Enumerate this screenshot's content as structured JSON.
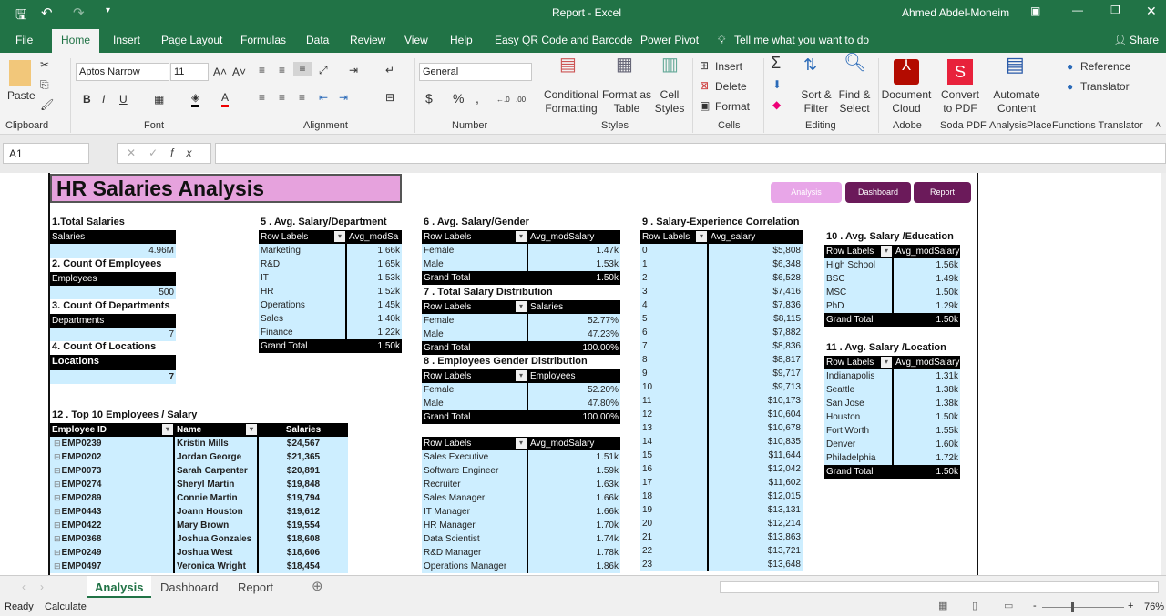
{
  "window": {
    "title": "Report - Excel",
    "user": "Ahmed Abdel-Moneim"
  },
  "ribbon_tabs": [
    "File",
    "Home",
    "Insert",
    "Page Layout",
    "Formulas",
    "Data",
    "Review",
    "View",
    "Help",
    "Easy QR Code and Barcode",
    "Power Pivot"
  ],
  "tell_me": "Tell me what you want to do",
  "share": "Share",
  "ribbon": {
    "paste": "Paste",
    "font_name": "Aptos Narrow",
    "font_size": "11",
    "number_format": "General",
    "conditional": "Conditional Formatting",
    "format_table": "Format as Table",
    "cell_styles": "Cell Styles",
    "insert": "Insert",
    "delete": "Delete",
    "format": "Format",
    "sort": "Sort & Filter",
    "find": "Find & Select",
    "doc_cloud": "Document Cloud",
    "convert_pdf": "Convert to PDF",
    "automate": "Automate Content",
    "reference": "Reference",
    "translator": "Translator",
    "groups": [
      "Clipboard",
      "Font",
      "Alignment",
      "Number",
      "Styles",
      "Cells",
      "Editing",
      "Adobe",
      "Soda PDF",
      "AnalysisPlace",
      "Functions Translator"
    ]
  },
  "formula_bar": {
    "name_box": "A1",
    "formula": ""
  },
  "sheet": {
    "title": "HR Salaries Analysis",
    "nav": [
      "Analysis",
      "Dashboard",
      "Report"
    ],
    "kpis": [
      {
        "title": "1.Total Salaries",
        "label": "Salaries",
        "value": "4.96M"
      },
      {
        "title": "2. Count Of Employees",
        "label": "Employees",
        "value": "500"
      },
      {
        "title": "3. Count Of  Departments",
        "label": "Departments",
        "value": "7"
      },
      {
        "title": "4. Count Of  Locations",
        "label": "Locations",
        "value": "7"
      }
    ],
    "tables": {
      "t5": {
        "title": "5 . Avg. Salary/Department",
        "headers": [
          "Row Labels",
          "Avg_modSa"
        ],
        "rows": [
          [
            "Marketing",
            "1.66k"
          ],
          [
            "R&D",
            "1.65k"
          ],
          [
            "IT",
            "1.53k"
          ],
          [
            "HR",
            "1.52k"
          ],
          [
            "Operations",
            "1.45k"
          ],
          [
            "Sales",
            "1.40k"
          ],
          [
            "Finance",
            "1.22k"
          ]
        ],
        "total": [
          "Grand Total",
          "1.50k"
        ]
      },
      "t6": {
        "title": "6 . Avg. Salary/Gender",
        "headers": [
          "Row Labels",
          "Avg_modSalary"
        ],
        "rows": [
          [
            "Female",
            "1.47k"
          ],
          [
            "Male",
            "1.53k"
          ]
        ],
        "total": [
          "Grand Total",
          "1.50k"
        ]
      },
      "t7": {
        "title": "7 . Total Salary Distribution",
        "headers": [
          "Row Labels",
          "Salaries"
        ],
        "rows": [
          [
            "Female",
            "52.77%"
          ],
          [
            "Male",
            "47.23%"
          ]
        ],
        "total": [
          "Grand Total",
          "100.00%"
        ]
      },
      "t8": {
        "title": "8 . Employees Gender Distribution",
        "headers": [
          "Row Labels",
          "Employees"
        ],
        "rows": [
          [
            "Female",
            "52.20%"
          ],
          [
            "Male",
            "47.80%"
          ]
        ],
        "total": [
          "Grand Total",
          "100.00%"
        ]
      },
      "tjob": {
        "title": "",
        "headers": [
          "Row Labels",
          "Avg_modSalary"
        ],
        "rows": [
          [
            "Sales Executive",
            "1.51k"
          ],
          [
            "Software Engineer",
            "1.59k"
          ],
          [
            "Recruiter",
            "1.63k"
          ],
          [
            "Sales Manager",
            "1.66k"
          ],
          [
            "IT Manager",
            "1.66k"
          ],
          [
            "HR Manager",
            "1.70k"
          ],
          [
            "Data Scientist",
            "1.74k"
          ],
          [
            "R&D Manager",
            "1.78k"
          ],
          [
            "Operations Manager",
            "1.86k"
          ]
        ]
      },
      "t9": {
        "title": "9 . Salary-Experience Correlation",
        "headers": [
          "Row Labels",
          "Avg_salary"
        ],
        "rows": [
          [
            "0",
            "$5,808"
          ],
          [
            "1",
            "$6,348"
          ],
          [
            "2",
            "$6,528"
          ],
          [
            "3",
            "$7,416"
          ],
          [
            "4",
            "$7,836"
          ],
          [
            "5",
            "$8,115"
          ],
          [
            "6",
            "$7,882"
          ],
          [
            "7",
            "$8,836"
          ],
          [
            "8",
            "$8,817"
          ],
          [
            "9",
            "$9,717"
          ],
          [
            "10",
            "$9,713"
          ],
          [
            "11",
            "$10,173"
          ],
          [
            "12",
            "$10,604"
          ],
          [
            "13",
            "$10,678"
          ],
          [
            "14",
            "$10,835"
          ],
          [
            "15",
            "$11,644"
          ],
          [
            "16",
            "$12,042"
          ],
          [
            "17",
            "$11,602"
          ],
          [
            "18",
            "$12,015"
          ],
          [
            "19",
            "$13,131"
          ],
          [
            "20",
            "$12,214"
          ],
          [
            "21",
            "$13,863"
          ],
          [
            "22",
            "$13,721"
          ],
          [
            "23",
            "$13,648"
          ]
        ]
      },
      "t10": {
        "title": "10 . Avg. Salary /Education",
        "headers": [
          "Row Labels",
          "Avg_modSalary"
        ],
        "rows": [
          [
            "High School",
            "1.56k"
          ],
          [
            "BSC",
            "1.49k"
          ],
          [
            "MSC",
            "1.50k"
          ],
          [
            "PhD",
            "1.29k"
          ]
        ],
        "total": [
          "Grand Total",
          "1.50k"
        ]
      },
      "t11": {
        "title": "11 . Avg. Salary /Location",
        "headers": [
          "Row Labels",
          "Avg_modSalary"
        ],
        "rows": [
          [
            "Indianapolis",
            "1.31k"
          ],
          [
            "Seattle",
            "1.38k"
          ],
          [
            "San Jose",
            "1.38k"
          ],
          [
            "Houston",
            "1.50k"
          ],
          [
            "Fort Worth",
            "1.55k"
          ],
          [
            "Denver",
            "1.60k"
          ],
          [
            "Philadelphia",
            "1.72k"
          ]
        ],
        "total": [
          "Grand Total",
          "1.50k"
        ]
      },
      "t12": {
        "title": "12 . Top 10 Employees / Salary",
        "headers": [
          "Employee ID",
          "Name",
          "Salaries"
        ],
        "rows": [
          [
            "EMP0239",
            "Kristin Mills",
            "$24,567"
          ],
          [
            "EMP0202",
            "Jordan George",
            "$21,365"
          ],
          [
            "EMP0073",
            "Sarah Carpenter",
            "$20,891"
          ],
          [
            "EMP0274",
            "Sheryl Martin",
            "$19,848"
          ],
          [
            "EMP0289",
            "Connie Martin",
            "$19,794"
          ],
          [
            "EMP0443",
            "Joann Houston",
            "$19,612"
          ],
          [
            "EMP0422",
            "Mary Brown",
            "$19,554"
          ],
          [
            "EMP0368",
            "Joshua Gonzales",
            "$18,608"
          ],
          [
            "EMP0249",
            "Joshua West",
            "$18,606"
          ],
          [
            "EMP0497",
            "Veronica Wright",
            "$18,454"
          ]
        ]
      }
    },
    "colors": {
      "title_bg": "#e6a2dd",
      "nav_active": "#e8a6e8",
      "nav": "#6b1a5a",
      "cell": "#cdeeff",
      "excel_green": "#217346"
    }
  },
  "sheet_tabs": [
    "Analysis",
    "Dashboard",
    "Report"
  ],
  "active_sheet": "Analysis",
  "status": {
    "ready": "Ready",
    "calculate": "Calculate",
    "zoom": "76%"
  }
}
